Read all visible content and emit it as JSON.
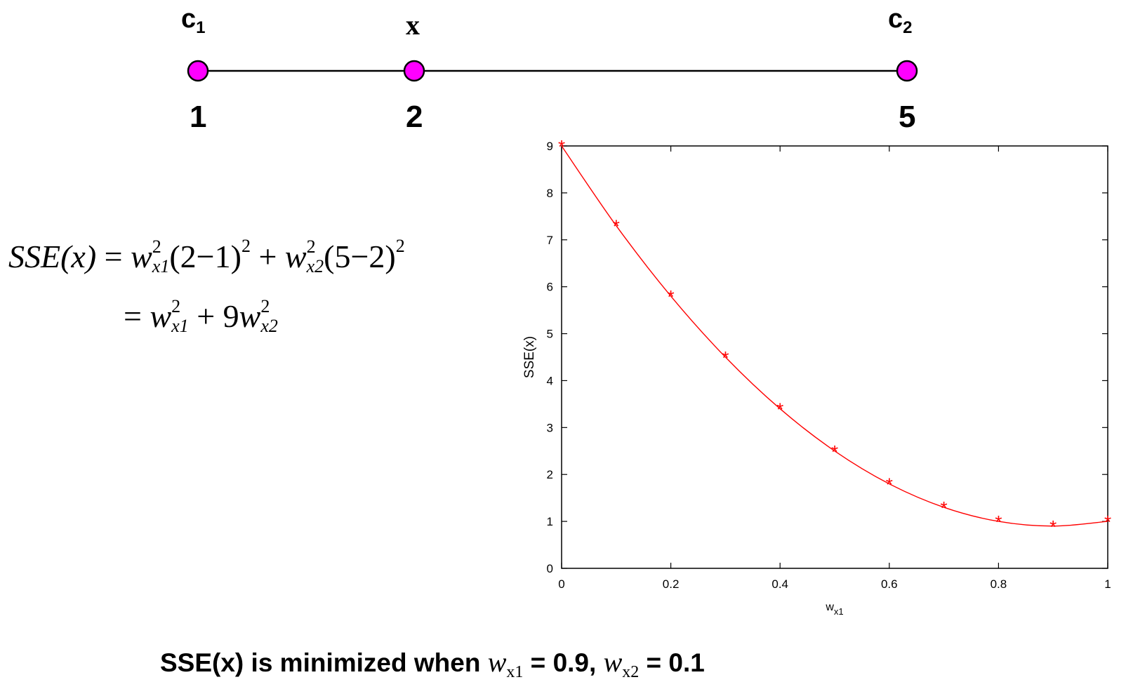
{
  "diagram": {
    "points": [
      {
        "top_label": "c",
        "top_sub": "1",
        "value_label": "1"
      },
      {
        "top_label": "x",
        "top_sub": "",
        "value_label": "2"
      },
      {
        "top_label": "c",
        "top_sub": "2",
        "value_label": "5"
      }
    ],
    "colors": {
      "point_fill": "#ff00ff",
      "line": "#000000"
    }
  },
  "equation": {
    "lhs": "SSE(x)",
    "eq": "=",
    "w": "w",
    "x1": "x1",
    "x2": "x2",
    "two": "2",
    "plus": "+",
    "nine": "9",
    "term1_paren": "(2−1)",
    "term2_paren": "(5−2)"
  },
  "chart_data": {
    "type": "line",
    "x": [
      0,
      0.1,
      0.2,
      0.3,
      0.4,
      0.5,
      0.6,
      0.7,
      0.8,
      0.9,
      1.0
    ],
    "series": [
      {
        "values": [
          9,
          7.3,
          5.8,
          4.5,
          3.4,
          2.5,
          1.8,
          1.3,
          1.0,
          0.9,
          1.0
        ],
        "color": "#ff0000",
        "marker": "*"
      }
    ],
    "xlabel": "w",
    "xlabel_sub": "x1",
    "ylabel": "SSE(x)",
    "xlim": [
      0,
      1
    ],
    "ylim": [
      0,
      9
    ],
    "xticks": [
      "0",
      "0.2",
      "0.4",
      "0.6",
      "0.8",
      "1"
    ],
    "yticks": [
      "0",
      "1",
      "2",
      "3",
      "4",
      "5",
      "6",
      "7",
      "8",
      "9"
    ],
    "grid": false
  },
  "caption": {
    "text1": "SSE(x) is minimized when ",
    "w": "w",
    "x1": "x1",
    "text2": " = 0.9, ",
    "x2": "x2",
    "text3": " = 0.1"
  }
}
